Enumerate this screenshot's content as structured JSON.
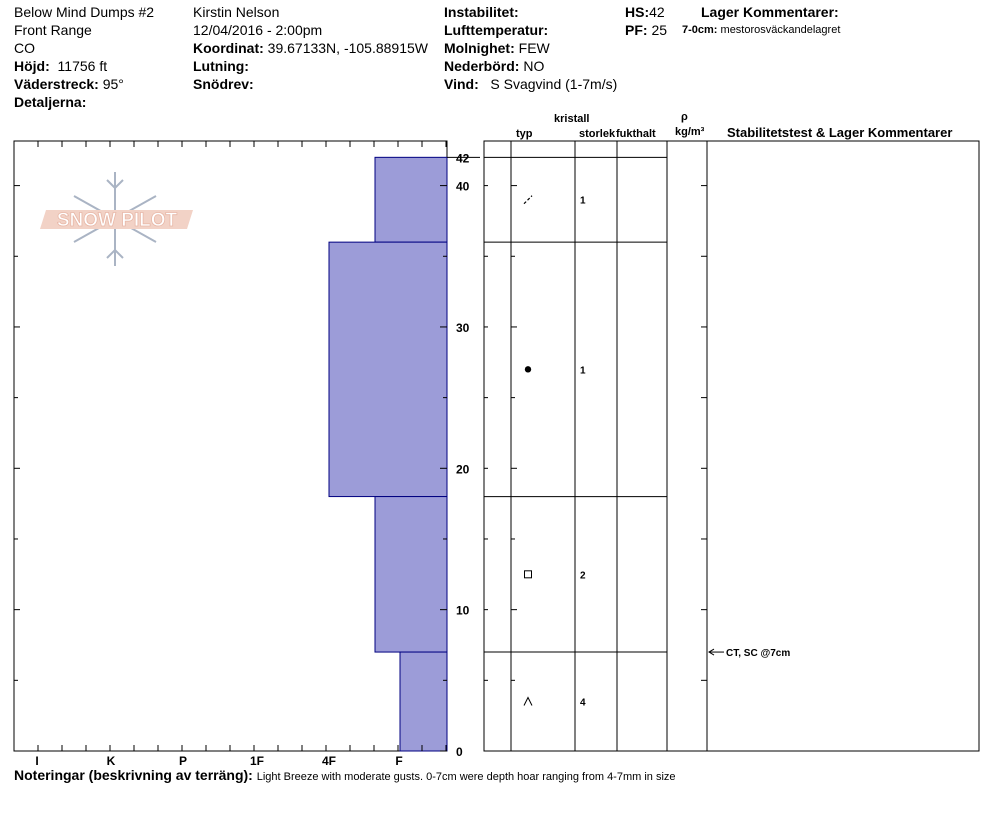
{
  "header": {
    "site_name": "Below Mind Dumps #2",
    "range": "Front Range",
    "state": "CO",
    "elevation_label": "Höjd:",
    "elevation_value": "11756 ft",
    "aspect_label": "Väderstreck:",
    "aspect_value": "95°",
    "details_label": "Detaljerna:",
    "observer": "Kirstin Nelson",
    "datetime": "12/04/2016 - 2:00pm",
    "coord_label": "Koordinat:",
    "coord_value": "39.67133N, -105.88915W",
    "slope_label": "Lutning:",
    "snowdrift_label": "Snödrev:",
    "instability_label": "Instabilitet:",
    "air_temp_label": "Lufttemperatur:",
    "cloud_label": "Molnighet:",
    "cloud_value": "FEW",
    "precip_label": "Nederbörd:",
    "precip_value": "NO",
    "wind_label": "Vind:",
    "wind_value": "S Svagvind (1-7m/s)",
    "hs_label": "HS:",
    "hs_value": "42",
    "pf_label": "PF:",
    "pf_value": "25",
    "layer_comments_title": "Lager Kommentarer:",
    "layer_comment_range": "7-0cm:",
    "layer_comment_text": "mestorosväckandelagret"
  },
  "table_headers": {
    "kristall": "kristall",
    "typ": "typ",
    "storlek": "storlek",
    "fukthalt": "fukthalt",
    "rho": "ρ",
    "density_unit": "kg/m³",
    "stability": "Stabilitetstest & Lager Kommentarer"
  },
  "notes": {
    "label": "Noteringar (beskrivning av terräng):",
    "text": "Light Breeze with moderate gusts.  0-7cm were depth hoar ranging from 4-7mm in size"
  },
  "chart_data": {
    "type": "bar",
    "hardness_scale": [
      "I",
      "K",
      "P",
      "1F",
      "4F",
      "F"
    ],
    "y_ticks": [
      0,
      10,
      20,
      30,
      40
    ],
    "hs": 42,
    "ylim": [
      0,
      42
    ],
    "top_label": "42",
    "layers": [
      {
        "top": 42,
        "bottom": 36,
        "hardness": "F",
        "crystal_symbol": "decomposing",
        "size": "1"
      },
      {
        "top": 36,
        "bottom": 18,
        "hardness": "4F",
        "crystal_symbol": "rounded",
        "size": "1"
      },
      {
        "top": 18,
        "bottom": 7,
        "hardness": "F",
        "crystal_symbol": "faceted",
        "size": "2"
      },
      {
        "top": 7,
        "bottom": 0,
        "hardness": "F-",
        "crystal_symbol": "depth-hoar",
        "size": "4"
      }
    ],
    "stability_tests": [
      {
        "depth": 7,
        "label": "CT, SC @7cm"
      }
    ],
    "colors": {
      "layer_fill": "#9c9cd8",
      "layer_stroke": "#000080"
    }
  },
  "logo": {
    "text": "SNOW PILOT"
  }
}
